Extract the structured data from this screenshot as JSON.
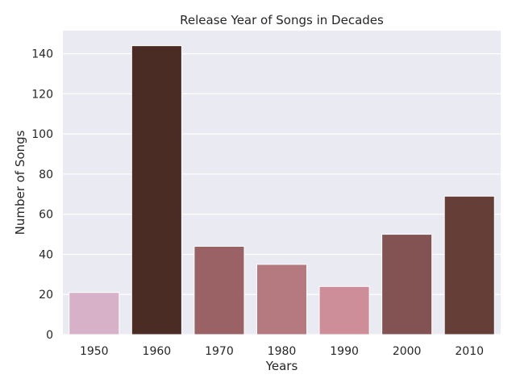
{
  "chart_data": {
    "type": "bar",
    "title": "Release Year of Songs in Decades",
    "xlabel": "Years",
    "ylabel": "Number of Songs",
    "categories": [
      "1950",
      "1960",
      "1970",
      "1980",
      "1990",
      "2000",
      "2010"
    ],
    "values": [
      21,
      144,
      44,
      35,
      24,
      50,
      69
    ],
    "colors": [
      "#d6b1c8",
      "#4b2c24",
      "#9a6264",
      "#b57a80",
      "#cd8d99",
      "#835353",
      "#653e38"
    ],
    "ylim": [
      0,
      151.5
    ],
    "yticks": [
      0,
      20,
      40,
      60,
      80,
      100,
      120,
      140
    ],
    "grid": true,
    "background": "#eaeaf2"
  }
}
